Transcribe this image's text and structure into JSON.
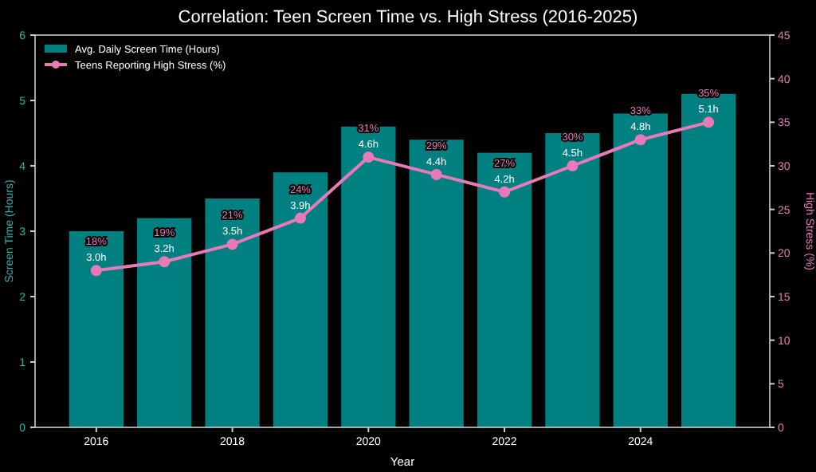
{
  "chart_data": {
    "type": "bar",
    "title": "Correlation: Teen Screen Time vs. High Stress (2016-2025)",
    "xlabel": "Year",
    "ylabel": "Screen Time (Hours)",
    "y2label": "High Stress (%)",
    "x": [
      2016,
      2017,
      2018,
      2019,
      2020,
      2021,
      2022,
      2023,
      2024,
      2025
    ],
    "xlim": [
      2015.1,
      2025.9
    ],
    "xticks": [
      2016,
      2018,
      2020,
      2022,
      2024
    ],
    "ylim": [
      0,
      6
    ],
    "yticks": [
      0,
      1,
      2,
      3,
      4,
      5,
      6
    ],
    "y2lim": [
      0,
      45
    ],
    "y2ticks": [
      0,
      5,
      10,
      15,
      20,
      25,
      30,
      35,
      40,
      45
    ],
    "series": [
      {
        "name": "Avg. Daily Screen Time (Hours)",
        "color": "#008080",
        "values": [
          3.0,
          3.2,
          3.5,
          3.9,
          4.6,
          4.4,
          4.2,
          4.5,
          4.8,
          5.1
        ],
        "value_labels": [
          "3.0h",
          "3.2h",
          "3.5h",
          "3.9h",
          "4.6h",
          "4.4h",
          "4.2h",
          "4.5h",
          "4.8h",
          "5.1h"
        ]
      },
      {
        "name": "Teens Reporting High Stress (%)",
        "type": "line",
        "axis": "y2",
        "color": "#e87ab8",
        "marker": "circle",
        "values": [
          18,
          19,
          21,
          24,
          31,
          29,
          27,
          30,
          33,
          35
        ],
        "value_labels": [
          "18%",
          "19%",
          "21%",
          "24%",
          "31%",
          "29%",
          "27%",
          "30%",
          "33%",
          "35%"
        ]
      }
    ],
    "legend": "top left",
    "grid": false
  }
}
